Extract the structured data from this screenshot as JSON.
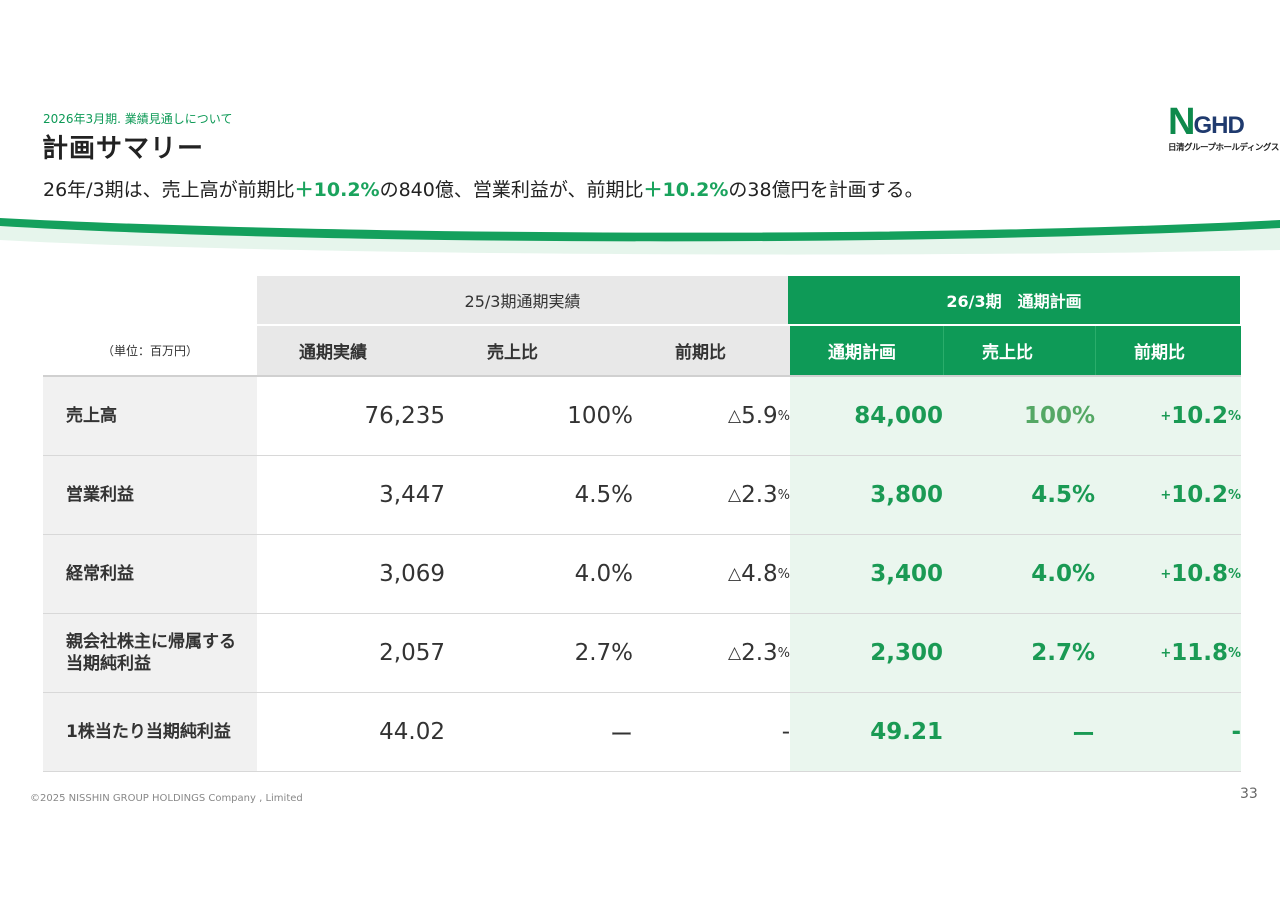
{
  "header": {
    "section_label": "2026年3月期. 業績見通しについて",
    "title": "計画サマリー",
    "lead": {
      "part1": "26年/3期は、売上高が前期比",
      "hl1": "＋10.2%",
      "part2": "の840億、営業利益が、前期比",
      "hl2": "＋10.2%",
      "part3": "の38億円を計画する。"
    }
  },
  "logo": {
    "mark_n": "N",
    "mark_ghd": "GHD",
    "sub": "日清グループホールディングス"
  },
  "colors": {
    "brand_green": "#0e9a57",
    "plan_bg": "#eaf6ee",
    "value_green": "#1a9a54"
  },
  "table": {
    "unit_label": "（単位：百万円）",
    "group_actual": "25/3期通期実績",
    "group_plan": "26/3期　通期計画",
    "col_headers": [
      "通期実績",
      "売上比",
      "前期比",
      "通期計画",
      "売上比",
      "前期比"
    ],
    "rows": [
      {
        "label": "売上高",
        "actual": "76,235",
        "ratio": "100%",
        "yoy_sym": "△",
        "yoy": "5.9",
        "yoy_unit": "%",
        "plan": "84,000",
        "plan_ratio": "100%",
        "plan_yoy_sym": "+",
        "plan_yoy": "10.2",
        "plan_yoy_unit": "%"
      },
      {
        "label": "営業利益",
        "actual": "3,447",
        "ratio": "4.5%",
        "yoy_sym": "△",
        "yoy": "2.3",
        "yoy_unit": "%",
        "plan": "3,800",
        "plan_ratio": "4.5%",
        "plan_yoy_sym": "+",
        "plan_yoy": "10.2",
        "plan_yoy_unit": "%"
      },
      {
        "label": "経常利益",
        "actual": "3,069",
        "ratio": "4.0%",
        "yoy_sym": "△",
        "yoy": "4.8",
        "yoy_unit": "%",
        "plan": "3,400",
        "plan_ratio": "4.0%",
        "plan_yoy_sym": "+",
        "plan_yoy": "10.8",
        "plan_yoy_unit": "%"
      },
      {
        "label_line1": "親会社株主に帰属する",
        "label_line2": "当期純利益",
        "actual": "2,057",
        "ratio": "2.7%",
        "yoy_sym": "△",
        "yoy": "2.3",
        "yoy_unit": "%",
        "plan": "2,300",
        "plan_ratio": "2.7%",
        "plan_yoy_sym": "+",
        "plan_yoy": "11.8",
        "plan_yoy_unit": "%"
      },
      {
        "label": "1株当たり当期純利益",
        "actual": "44.02",
        "ratio": "ー",
        "yoy": "-",
        "plan": "49.21",
        "plan_ratio": "ー",
        "plan_yoy": "-"
      }
    ]
  },
  "footer": {
    "copyright": "©2025 NISSHIN GROUP HOLDINGS Company , Limited",
    "page": "33"
  }
}
